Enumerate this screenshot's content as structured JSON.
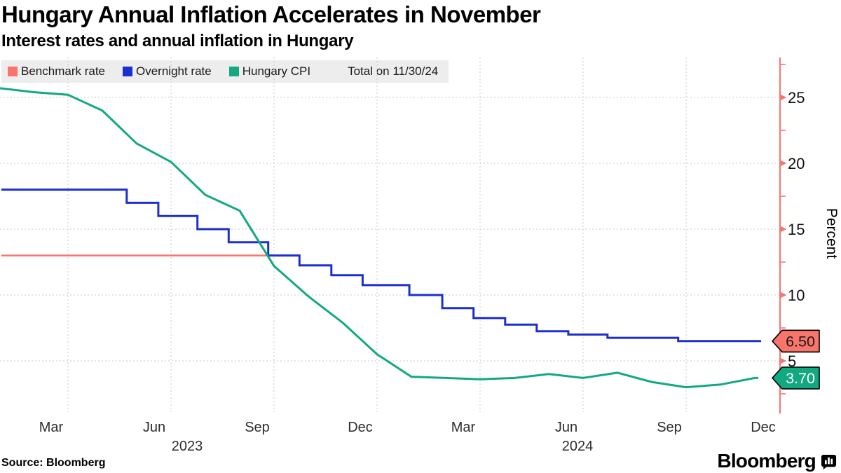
{
  "header": {
    "title": "Hungary Annual Inflation Accelerates in November",
    "subtitle": "Interest rates and annual inflation in Hungary"
  },
  "legend": {
    "items": [
      {
        "label": "Benchmark rate",
        "color": "#f8756c"
      },
      {
        "label": "Overnight rate",
        "color": "#1c2fd0"
      },
      {
        "label": "Hungary CPI",
        "color": "#12a981"
      }
    ],
    "note": "Total on 11/30/24"
  },
  "footer": {
    "source": "Source: Bloomberg",
    "brand": "Bloomberg"
  },
  "chart_data": {
    "type": "line",
    "title": "Hungary Annual Inflation Accelerates in November",
    "subtitle": "Interest rates and annual inflation in Hungary",
    "ylabel": "Percent",
    "xlabel": "",
    "ylim": [
      1,
      28
    ],
    "grid": true,
    "legend_position": "top",
    "as_of": "Total on 11/30/24",
    "axis_color": "#f8756c",
    "gridline_color": "#c8c8c8",
    "y_ticks": [
      5,
      10,
      15,
      20,
      25
    ],
    "y_minor_ticks": [
      2.5,
      7.5,
      12.5,
      17.5,
      22.5,
      27.5
    ],
    "x_tick_labels": [
      "Mar",
      "Jun",
      "Sep",
      "Dec",
      "Mar",
      "Jun",
      "Sep",
      "Dec"
    ],
    "x_years": [
      "2023",
      "2024"
    ],
    "series": [
      {
        "name": "Benchmark rate",
        "type": "step",
        "color": "#f8756c",
        "stroke_width": 2.5,
        "end_label": {
          "text": "6.50",
          "bg": "#f8756c",
          "text_color": "#1a1a1a"
        },
        "points": [
          {
            "date": "2023-01-02",
            "m": 1.06,
            "value": 13.0
          },
          {
            "date": "2023-10-24",
            "m": 9.74,
            "value": 12.25
          },
          {
            "date": "2023-11-21",
            "m": 10.67,
            "value": 11.5
          },
          {
            "date": "2023-12-19",
            "m": 11.58,
            "value": 10.75
          },
          {
            "date": "2024-01-30",
            "m": 12.94,
            "value": 10.0
          },
          {
            "date": "2024-02-27",
            "m": 13.9,
            "value": 9.0
          },
          {
            "date": "2024-03-26",
            "m": 14.81,
            "value": 8.25
          },
          {
            "date": "2024-04-23",
            "m": 15.73,
            "value": 7.75
          },
          {
            "date": "2024-05-21",
            "m": 16.65,
            "value": 7.25
          },
          {
            "date": "2024-06-18",
            "m": 17.57,
            "value": 7.0
          },
          {
            "date": "2024-07-23",
            "m": 18.71,
            "value": 6.75
          },
          {
            "date": "2024-09-24",
            "m": 20.77,
            "value": 6.5
          }
        ]
      },
      {
        "name": "Overnight rate",
        "type": "step",
        "color": "#1c2fd0",
        "stroke_width": 3,
        "end_label": null,
        "points": [
          {
            "date": "2023-01-02",
            "m": 1.06,
            "value": 18.0
          },
          {
            "date": "2023-05-23",
            "m": 4.71,
            "value": 17.0
          },
          {
            "date": "2023-06-20",
            "m": 5.63,
            "value": 16.0
          },
          {
            "date": "2023-07-25",
            "m": 6.77,
            "value": 15.0
          },
          {
            "date": "2023-08-22",
            "m": 7.68,
            "value": 14.0
          },
          {
            "date": "2023-09-26",
            "m": 8.83,
            "value": 13.0
          },
          {
            "date": "2023-10-24",
            "m": 9.74,
            "value": 12.25
          },
          {
            "date": "2023-11-21",
            "m": 10.67,
            "value": 11.5
          },
          {
            "date": "2023-12-19",
            "m": 11.58,
            "value": 10.75
          },
          {
            "date": "2024-01-30",
            "m": 12.94,
            "value": 10.0
          },
          {
            "date": "2024-02-27",
            "m": 13.9,
            "value": 9.0
          },
          {
            "date": "2024-03-26",
            "m": 14.81,
            "value": 8.25
          },
          {
            "date": "2024-04-23",
            "m": 15.73,
            "value": 7.75
          },
          {
            "date": "2024-05-21",
            "m": 16.65,
            "value": 7.25
          },
          {
            "date": "2024-06-18",
            "m": 17.57,
            "value": 7.0
          },
          {
            "date": "2024-07-23",
            "m": 18.71,
            "value": 6.75
          },
          {
            "date": "2024-09-24",
            "m": 20.77,
            "value": 6.5
          }
        ]
      },
      {
        "name": "Hungary CPI",
        "type": "line",
        "color": "#12a981",
        "stroke_width": 3,
        "end_label": {
          "text": "3.70",
          "bg": "#12a981",
          "text_color": "#ffffff"
        },
        "months": [
          "2023-01",
          "2023-02",
          "2023-03",
          "2023-04",
          "2023-05",
          "2023-06",
          "2023-07",
          "2023-08",
          "2023-09",
          "2023-10",
          "2023-11",
          "2023-12",
          "2024-01",
          "2024-02",
          "2024-03",
          "2024-04",
          "2024-05",
          "2024-06",
          "2024-07",
          "2024-08",
          "2024-09",
          "2024-10",
          "2024-11"
        ],
        "values": [
          25.7,
          25.4,
          25.2,
          24.0,
          21.5,
          20.1,
          17.6,
          16.4,
          12.2,
          9.9,
          7.9,
          5.5,
          3.8,
          3.7,
          3.6,
          3.7,
          4.0,
          3.7,
          4.1,
          3.4,
          3.0,
          3.2,
          3.7
        ]
      }
    ]
  }
}
